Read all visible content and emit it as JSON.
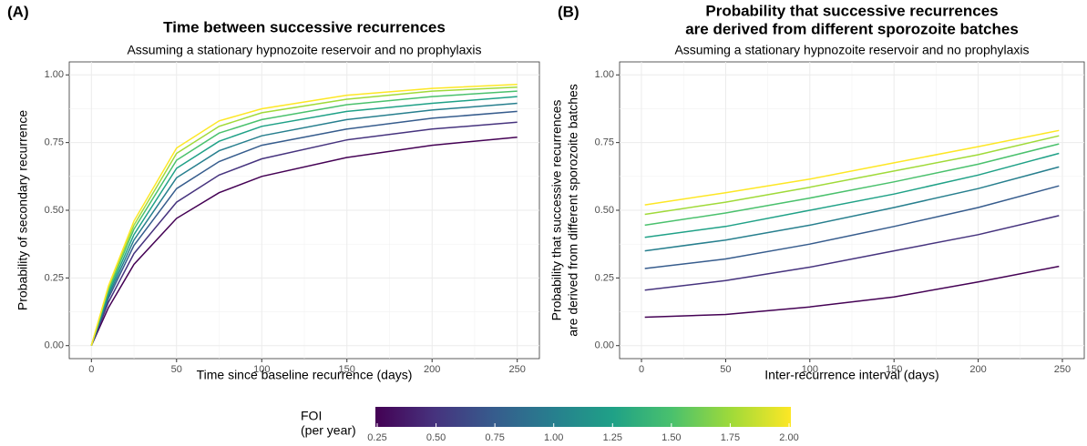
{
  "chart_data": [
    {
      "type": "line",
      "panel_label": "(A)",
      "title": [
        "Time between successive recurrences"
      ],
      "subtitle": "Assuming a stationary hypnozoite reservoir and no prophylaxis",
      "x_label": "Time since baseline recurrence (days)",
      "y_label": [
        "Probability of secondary recurrence"
      ],
      "x": [
        0,
        10,
        25,
        50,
        75,
        100,
        150,
        200,
        250
      ],
      "series": [
        {
          "color": "#440154",
          "values": [
            0,
            0.14,
            0.3,
            0.47,
            0.565,
            0.625,
            0.695,
            0.74,
            0.77
          ]
        },
        {
          "color": "#46337E",
          "values": [
            0,
            0.16,
            0.34,
            0.53,
            0.63,
            0.69,
            0.76,
            0.8,
            0.825
          ]
        },
        {
          "color": "#365C8D",
          "values": [
            0,
            0.175,
            0.37,
            0.58,
            0.68,
            0.74,
            0.8,
            0.84,
            0.865
          ]
        },
        {
          "color": "#277F8E",
          "values": [
            0,
            0.185,
            0.39,
            0.62,
            0.72,
            0.775,
            0.835,
            0.87,
            0.895
          ]
        },
        {
          "color": "#1FA187",
          "values": [
            0,
            0.195,
            0.41,
            0.655,
            0.755,
            0.81,
            0.865,
            0.895,
            0.92
          ]
        },
        {
          "color": "#4AC16D",
          "values": [
            0,
            0.205,
            0.43,
            0.685,
            0.785,
            0.835,
            0.89,
            0.92,
            0.94
          ]
        },
        {
          "color": "#A0DA39",
          "values": [
            0,
            0.215,
            0.445,
            0.71,
            0.81,
            0.86,
            0.91,
            0.94,
            0.955
          ]
        },
        {
          "color": "#FDE725",
          "values": [
            0,
            0.22,
            0.46,
            0.73,
            0.83,
            0.875,
            0.925,
            0.95,
            0.965
          ]
        }
      ],
      "xlim": [
        -13,
        263
      ],
      "ylim": [
        -0.048,
        1.048
      ],
      "xticks": [
        0,
        50,
        100,
        150,
        200,
        250
      ],
      "yticks": [
        {
          "value": 0,
          "label": "0.00"
        },
        0.25,
        {
          "value": 0.5,
          "label": "0.50"
        },
        0.75,
        {
          "value": 1,
          "label": "1.00"
        }
      ],
      "grid": true
    },
    {
      "type": "line",
      "panel_label": "(B)",
      "title": [
        "Probability that successive recurrences",
        "are derived from different sporozoite batches"
      ],
      "subtitle": "Assuming a stationary hypnozoite reservoir and no prophylaxis",
      "x_label": "Inter-recurrence interval (days)",
      "y_label": [
        "Probability that successive recurrences",
        "are derived from different sporozoite batches"
      ],
      "x": [
        2,
        50,
        100,
        150,
        200,
        248
      ],
      "series": [
        {
          "color": "#440154",
          "values": [
            0.105,
            0.115,
            0.143,
            0.18,
            0.235,
            0.293
          ]
        },
        {
          "color": "#46337E",
          "values": [
            0.205,
            0.24,
            0.29,
            0.35,
            0.41,
            0.48
          ]
        },
        {
          "color": "#365C8D",
          "values": [
            0.285,
            0.32,
            0.375,
            0.44,
            0.51,
            0.59
          ]
        },
        {
          "color": "#277F8E",
          "values": [
            0.35,
            0.39,
            0.445,
            0.51,
            0.58,
            0.66
          ]
        },
        {
          "color": "#1FA187",
          "values": [
            0.4,
            0.44,
            0.5,
            0.56,
            0.63,
            0.71
          ]
        },
        {
          "color": "#4AC16D",
          "values": [
            0.445,
            0.49,
            0.545,
            0.605,
            0.67,
            0.745
          ]
        },
        {
          "color": "#A0DA39",
          "values": [
            0.485,
            0.53,
            0.585,
            0.645,
            0.705,
            0.775
          ]
        },
        {
          "color": "#FDE725",
          "values": [
            0.52,
            0.565,
            0.615,
            0.675,
            0.735,
            0.795
          ]
        }
      ],
      "xlim": [
        -13,
        263
      ],
      "ylim": [
        -0.048,
        1.048
      ],
      "xticks": [
        0,
        50,
        100,
        150,
        200,
        250
      ],
      "yticks": [
        {
          "value": 0,
          "label": "0.00"
        },
        0.25,
        {
          "value": 0.5,
          "label": "0.50"
        },
        0.75,
        {
          "value": 1,
          "label": "1.00"
        }
      ],
      "grid": true
    }
  ],
  "colorbar": {
    "title": [
      "FOI",
      "(per year)"
    ],
    "lim": [
      0.25,
      2.0
    ],
    "colors": [
      "#440154",
      "#46337E",
      "#365C8D",
      "#277F8E",
      "#1FA187",
      "#4AC16D",
      "#A0DA39",
      "#FDE725"
    ],
    "ticks": [
      0.25,
      {
        "value": 0.5,
        "label": "0.50"
      },
      0.75,
      {
        "value": 1,
        "label": "1.00"
      },
      1.25,
      {
        "value": 1.5,
        "label": "1.50"
      },
      1.75,
      {
        "value": 2,
        "label": "2.00"
      }
    ]
  }
}
